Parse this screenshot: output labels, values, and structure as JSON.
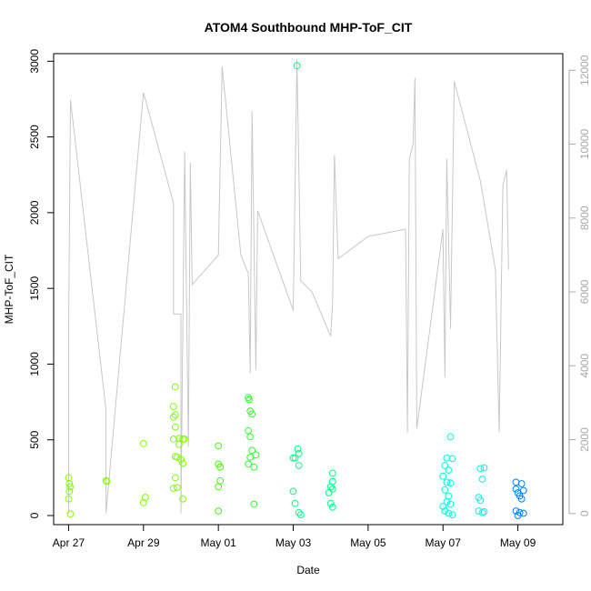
{
  "chart_data": {
    "type": "scatter",
    "title": "ATOM4 Southbound MHP-ToF_CIT",
    "xlabel": "Date",
    "ylabel": "MHP-ToF_CIT",
    "x_ticks": [
      "Apr 27",
      "Apr 29",
      "May 01",
      "May 03",
      "May 05",
      "May 07",
      "May 09"
    ],
    "x_tick_days": [
      0,
      2,
      4,
      6,
      8,
      10,
      12
    ],
    "xlim_days": [
      -0.4,
      13.2
    ],
    "ylim": [
      -60,
      3050
    ],
    "y_ticks": [
      0,
      500,
      1000,
      1500,
      2000,
      2500,
      3000
    ],
    "y2lim": [
      -300,
      12450
    ],
    "y2_ticks": [
      0,
      2000,
      4000,
      6000,
      8000,
      10000,
      12000
    ],
    "grid": false,
    "legend": "none",
    "colors": {
      "line": "#c8c8c8",
      "axis": "#000000",
      "axis2": "#a8a8a8"
    },
    "line_series_y2": [
      [
        0.0,
        2
      ],
      [
        0.0,
        5000
      ],
      [
        0.05,
        11200
      ],
      [
        1.0,
        2800
      ],
      [
        1.0,
        0
      ],
      [
        2.0,
        11400
      ],
      [
        2.8,
        8400
      ],
      [
        2.8,
        5400
      ],
      [
        3.0,
        5400
      ],
      [
        3.0,
        0
      ],
      [
        3.1,
        9800
      ],
      [
        3.2,
        1800
      ],
      [
        3.25,
        9500
      ],
      [
        3.3,
        6200
      ],
      [
        4.0,
        7000
      ],
      [
        4.1,
        12100
      ],
      [
        4.6,
        7000
      ],
      [
        4.8,
        6500
      ],
      [
        4.85,
        3800
      ],
      [
        4.9,
        10900
      ],
      [
        5.0,
        3900
      ],
      [
        5.05,
        8200
      ],
      [
        6.0,
        5500
      ],
      [
        6.1,
        12300
      ],
      [
        6.2,
        6300
      ],
      [
        6.5,
        6000
      ],
      [
        7.0,
        4800
      ],
      [
        7.05,
        5700
      ],
      [
        7.1,
        9700
      ],
      [
        7.2,
        6900
      ],
      [
        8.0,
        7500
      ],
      [
        9.0,
        7700
      ],
      [
        9.05,
        2200
      ],
      [
        9.1,
        9600
      ],
      [
        9.2,
        10000
      ],
      [
        9.25,
        11800
      ],
      [
        9.3,
        2300
      ],
      [
        10.0,
        7700
      ],
      [
        10.05,
        3700
      ],
      [
        10.1,
        9600
      ],
      [
        10.2,
        5000
      ],
      [
        10.3,
        11700
      ],
      [
        11.0,
        9000
      ],
      [
        11.4,
        6600
      ],
      [
        11.5,
        2200
      ],
      [
        11.6,
        8900
      ],
      [
        11.7,
        9300
      ],
      [
        11.75,
        6600
      ]
    ],
    "points": [
      {
        "x": 0.0,
        "y": 250,
        "color": "#80ff00"
      },
      {
        "x": 0.02,
        "y": 210,
        "color": "#80ff00"
      },
      {
        "x": 0.04,
        "y": 190,
        "color": "#80ff00"
      },
      {
        "x": 0.02,
        "y": 160,
        "color": "#80ff00"
      },
      {
        "x": 0.0,
        "y": 110,
        "color": "#80ff00"
      },
      {
        "x": 0.05,
        "y": 10,
        "color": "#80ff00"
      },
      {
        "x": 1.0,
        "y": 230,
        "color": "#80ff00"
      },
      {
        "x": 1.02,
        "y": 225,
        "color": "#80ff00"
      },
      {
        "x": 2.0,
        "y": 475,
        "color": "#80ff00"
      },
      {
        "x": 2.05,
        "y": 120,
        "color": "#80ff00"
      },
      {
        "x": 2.0,
        "y": 85,
        "color": "#80ff00"
      },
      {
        "x": 2.85,
        "y": 850,
        "color": "#7fff00"
      },
      {
        "x": 2.8,
        "y": 720,
        "color": "#7fff00"
      },
      {
        "x": 2.85,
        "y": 665,
        "color": "#7fff00"
      },
      {
        "x": 2.8,
        "y": 650,
        "color": "#7fff00"
      },
      {
        "x": 2.85,
        "y": 585,
        "color": "#7fff00"
      },
      {
        "x": 2.8,
        "y": 505,
        "color": "#7fff00"
      },
      {
        "x": 2.95,
        "y": 510,
        "color": "#7fff00"
      },
      {
        "x": 3.05,
        "y": 505,
        "color": "#7fff00"
      },
      {
        "x": 3.1,
        "y": 505,
        "color": "#7fff00"
      },
      {
        "x": 2.95,
        "y": 470,
        "color": "#7fff00"
      },
      {
        "x": 2.85,
        "y": 390,
        "color": "#7fff00"
      },
      {
        "x": 2.9,
        "y": 385,
        "color": "#7fff00"
      },
      {
        "x": 3.0,
        "y": 370,
        "color": "#7fff00"
      },
      {
        "x": 3.05,
        "y": 345,
        "color": "#7fff00"
      },
      {
        "x": 2.85,
        "y": 250,
        "color": "#7fff00"
      },
      {
        "x": 2.9,
        "y": 185,
        "color": "#7fff00"
      },
      {
        "x": 2.8,
        "y": 180,
        "color": "#7fff00"
      },
      {
        "x": 3.05,
        "y": 110,
        "color": "#7fff00"
      },
      {
        "x": 4.0,
        "y": 460,
        "color": "#40ff00"
      },
      {
        "x": 4.0,
        "y": 340,
        "color": "#40ff00"
      },
      {
        "x": 4.05,
        "y": 320,
        "color": "#40ff00"
      },
      {
        "x": 4.05,
        "y": 230,
        "color": "#40ff00"
      },
      {
        "x": 4.0,
        "y": 190,
        "color": "#40ff00"
      },
      {
        "x": 4.0,
        "y": 30,
        "color": "#40ff00"
      },
      {
        "x": 4.8,
        "y": 780,
        "color": "#30ff30"
      },
      {
        "x": 4.82,
        "y": 765,
        "color": "#30ff30"
      },
      {
        "x": 4.85,
        "y": 690,
        "color": "#30ff30"
      },
      {
        "x": 4.9,
        "y": 670,
        "color": "#30ff30"
      },
      {
        "x": 4.8,
        "y": 560,
        "color": "#30ff30"
      },
      {
        "x": 4.85,
        "y": 520,
        "color": "#30ff30"
      },
      {
        "x": 4.9,
        "y": 430,
        "color": "#30ff30"
      },
      {
        "x": 5.0,
        "y": 400,
        "color": "#30ff30"
      },
      {
        "x": 4.85,
        "y": 385,
        "color": "#30ff30"
      },
      {
        "x": 4.8,
        "y": 340,
        "color": "#30ff30"
      },
      {
        "x": 4.95,
        "y": 320,
        "color": "#30ff30"
      },
      {
        "x": 4.95,
        "y": 75,
        "color": "#30ff30"
      },
      {
        "x": 6.1,
        "y": 2970,
        "color": "#00ff80"
      },
      {
        "x": 6.12,
        "y": 440,
        "color": "#00ff80"
      },
      {
        "x": 6.15,
        "y": 410,
        "color": "#00ff80"
      },
      {
        "x": 6.0,
        "y": 380,
        "color": "#00ff80"
      },
      {
        "x": 6.05,
        "y": 380,
        "color": "#00ff80"
      },
      {
        "x": 6.15,
        "y": 330,
        "color": "#00ff80"
      },
      {
        "x": 6.0,
        "y": 160,
        "color": "#00ff80"
      },
      {
        "x": 6.05,
        "y": 80,
        "color": "#00ff80"
      },
      {
        "x": 6.15,
        "y": 20,
        "color": "#00ff80"
      },
      {
        "x": 6.2,
        "y": 5,
        "color": "#00ff80"
      },
      {
        "x": 7.0,
        "y": 190,
        "color": "#00ff80"
      },
      {
        "x": 7.05,
        "y": 175,
        "color": "#00ff80"
      },
      {
        "x": 6.95,
        "y": 150,
        "color": "#00ff80"
      },
      {
        "x": 7.05,
        "y": 280,
        "color": "#00ff80"
      },
      {
        "x": 7.05,
        "y": 225,
        "color": "#00ff80"
      },
      {
        "x": 7.0,
        "y": 80,
        "color": "#00ff80"
      },
      {
        "x": 7.05,
        "y": 55,
        "color": "#00ff80"
      },
      {
        "x": 10.2,
        "y": 520,
        "color": "#00ffe0"
      },
      {
        "x": 10.1,
        "y": 380,
        "color": "#00ffe0"
      },
      {
        "x": 10.25,
        "y": 375,
        "color": "#00ffe0"
      },
      {
        "x": 10.05,
        "y": 330,
        "color": "#00ffe0"
      },
      {
        "x": 10.15,
        "y": 300,
        "color": "#00ffe0"
      },
      {
        "x": 10.0,
        "y": 260,
        "color": "#00ffe0"
      },
      {
        "x": 10.1,
        "y": 220,
        "color": "#00ffe0"
      },
      {
        "x": 10.2,
        "y": 215,
        "color": "#00ffe0"
      },
      {
        "x": 10.05,
        "y": 170,
        "color": "#00ffe0"
      },
      {
        "x": 10.15,
        "y": 130,
        "color": "#00ffe0"
      },
      {
        "x": 10.1,
        "y": 90,
        "color": "#00ffe0"
      },
      {
        "x": 10.2,
        "y": 75,
        "color": "#00ffe0"
      },
      {
        "x": 10.0,
        "y": 60,
        "color": "#00ffe0"
      },
      {
        "x": 10.05,
        "y": 30,
        "color": "#00ffe0"
      },
      {
        "x": 10.15,
        "y": 15,
        "color": "#00ffe0"
      },
      {
        "x": 10.25,
        "y": 5,
        "color": "#00ffe0"
      },
      {
        "x": 11.0,
        "y": 310,
        "color": "#00ffe0"
      },
      {
        "x": 11.1,
        "y": 315,
        "color": "#00ffe0"
      },
      {
        "x": 11.05,
        "y": 240,
        "color": "#00ffe0"
      },
      {
        "x": 10.95,
        "y": 120,
        "color": "#00ffe0"
      },
      {
        "x": 11.0,
        "y": 100,
        "color": "#00ffe0"
      },
      {
        "x": 10.95,
        "y": 30,
        "color": "#00ffe0"
      },
      {
        "x": 11.05,
        "y": 20,
        "color": "#00ffe0"
      },
      {
        "x": 11.1,
        "y": 25,
        "color": "#00ffe0"
      },
      {
        "x": 11.95,
        "y": 220,
        "color": "#0080ff"
      },
      {
        "x": 12.1,
        "y": 210,
        "color": "#0080ff"
      },
      {
        "x": 11.95,
        "y": 175,
        "color": "#0080ff"
      },
      {
        "x": 12.15,
        "y": 165,
        "color": "#0080ff"
      },
      {
        "x": 12.0,
        "y": 150,
        "color": "#0080ff"
      },
      {
        "x": 12.05,
        "y": 130,
        "color": "#0080ff"
      },
      {
        "x": 12.1,
        "y": 110,
        "color": "#0080ff"
      },
      {
        "x": 11.95,
        "y": 30,
        "color": "#0080ff"
      },
      {
        "x": 12.05,
        "y": 20,
        "color": "#0080ff"
      },
      {
        "x": 12.15,
        "y": 15,
        "color": "#0080ff"
      },
      {
        "x": 12.0,
        "y": 0,
        "color": "#0080ff"
      }
    ]
  }
}
